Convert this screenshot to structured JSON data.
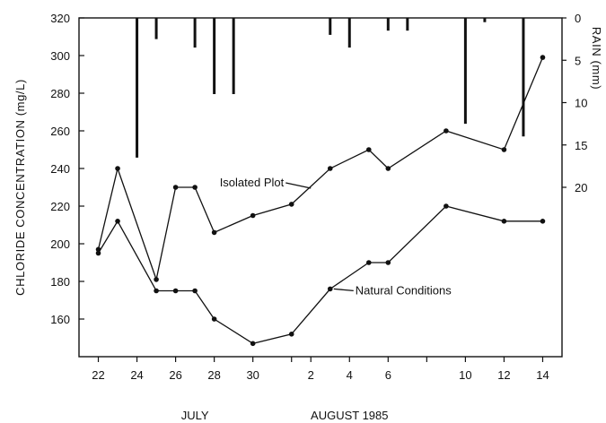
{
  "chart_data": {
    "type": "line",
    "title": "",
    "ylabel": "CHLORIDE CONCENTRATION (mg/L)",
    "y2label": "RAIN (mm)",
    "ylim": [
      140,
      320
    ],
    "yticks": [
      160,
      180,
      200,
      220,
      240,
      260,
      280,
      300,
      320
    ],
    "y2ticks": [
      0,
      5,
      10,
      15,
      20
    ],
    "y2lim": [
      0,
      40
    ],
    "x_start_date": "1985-07-22",
    "xlim": [
      "1985-07-21",
      "1985-08-15"
    ],
    "xticks": [
      {
        "date": "1985-07-22",
        "label": "22"
      },
      {
        "date": "1985-07-24",
        "label": "24"
      },
      {
        "date": "1985-07-26",
        "label": "26"
      },
      {
        "date": "1985-07-28",
        "label": "28"
      },
      {
        "date": "1985-07-30",
        "label": "30"
      },
      {
        "date": "1985-08-01",
        "label": ""
      },
      {
        "date": "1985-08-02",
        "label": "2"
      },
      {
        "date": "1985-08-04",
        "label": "4"
      },
      {
        "date": "1985-08-06",
        "label": "6"
      },
      {
        "date": "1985-08-08",
        "label": ""
      },
      {
        "date": "1985-08-10",
        "label": "10"
      },
      {
        "date": "1985-08-12",
        "label": "12"
      },
      {
        "date": "1985-08-14",
        "label": "14"
      }
    ],
    "month_labels": [
      {
        "label": "JULY",
        "date": "1985-07-27"
      },
      {
        "label": "AUGUST 1985",
        "date": "1985-08-04"
      }
    ],
    "series": [
      {
        "name": "Isolated Plot",
        "points": [
          {
            "x": "1985-07-22",
            "y": 197
          },
          {
            "x": "1985-07-23",
            "y": 240
          },
          {
            "x": "1985-07-25",
            "y": 181
          },
          {
            "x": "1985-07-26",
            "y": 230
          },
          {
            "x": "1985-07-27",
            "y": 230
          },
          {
            "x": "1985-07-28",
            "y": 206
          },
          {
            "x": "1985-07-30",
            "y": 215
          },
          {
            "x": "1985-08-01",
            "y": 221
          },
          {
            "x": "1985-08-03",
            "y": 240
          },
          {
            "x": "1985-08-05",
            "y": 250
          },
          {
            "x": "1985-08-06",
            "y": 240
          },
          {
            "x": "1985-08-09",
            "y": 260
          },
          {
            "x": "1985-08-12",
            "y": 250
          },
          {
            "x": "1985-08-14",
            "y": 299
          }
        ]
      },
      {
        "name": "Natural Conditions",
        "points": [
          {
            "x": "1985-07-22",
            "y": 195
          },
          {
            "x": "1985-07-23",
            "y": 212
          },
          {
            "x": "1985-07-25",
            "y": 175
          },
          {
            "x": "1985-07-26",
            "y": 175
          },
          {
            "x": "1985-07-27",
            "y": 175
          },
          {
            "x": "1985-07-28",
            "y": 160
          },
          {
            "x": "1985-07-30",
            "y": 147
          },
          {
            "x": "1985-08-01",
            "y": 152
          },
          {
            "x": "1985-08-03",
            "y": 176
          },
          {
            "x": "1985-08-05",
            "y": 190
          },
          {
            "x": "1985-08-06",
            "y": 190
          },
          {
            "x": "1985-08-09",
            "y": 220
          },
          {
            "x": "1985-08-12",
            "y": 212
          },
          {
            "x": "1985-08-14",
            "y": 212
          }
        ]
      }
    ],
    "rain": [
      {
        "x": "1985-07-24",
        "mm": 16.5
      },
      {
        "x": "1985-07-25",
        "mm": 2.5
      },
      {
        "x": "1985-07-27",
        "mm": 3.5
      },
      {
        "x": "1985-07-28",
        "mm": 9
      },
      {
        "x": "1985-07-29",
        "mm": 9
      },
      {
        "x": "1985-08-03",
        "mm": 2
      },
      {
        "x": "1985-08-04",
        "mm": 3.5
      },
      {
        "x": "1985-08-06",
        "mm": 1.5
      },
      {
        "x": "1985-08-07",
        "mm": 1.5
      },
      {
        "x": "1985-08-10",
        "mm": 12.5
      },
      {
        "x": "1985-08-11",
        "mm": 0.5
      },
      {
        "x": "1985-08-13",
        "mm": 14
      }
    ],
    "grid": false,
    "legend": "none"
  }
}
